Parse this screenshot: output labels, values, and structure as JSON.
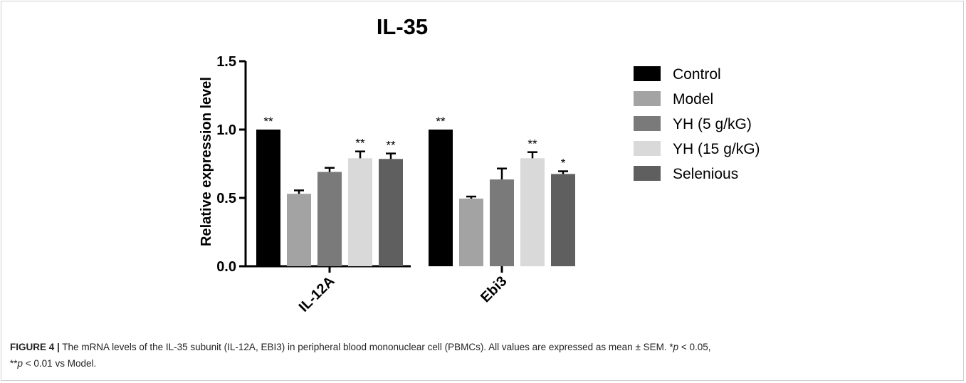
{
  "chart_data": {
    "type": "bar",
    "title": "IL-35",
    "xlabel": "",
    "ylabel": "Relative expression level",
    "ylim": [
      0,
      1.5
    ],
    "yticks": [
      "0.0",
      "0.5",
      "1.0",
      "1.5"
    ],
    "y_tick_values": [
      0,
      0.5,
      1.0,
      1.5
    ],
    "categories": [
      "IL-12A",
      "Ebi3"
    ],
    "legend_position": "right",
    "series": [
      {
        "name": "Control",
        "color": "#000000",
        "values": [
          1.0,
          1.0
        ],
        "errors": [
          0,
          0
        ],
        "annotations": [
          "**",
          "**"
        ]
      },
      {
        "name": "Model",
        "color": "#a3a3a3",
        "values": [
          0.53,
          0.495
        ],
        "errors": [
          0.025,
          0.015
        ],
        "annotations": [
          "",
          ""
        ]
      },
      {
        "name": "YH (5 g/kG)",
        "color": "#7a7a7a",
        "values": [
          0.69,
          0.635
        ],
        "errors": [
          0.03,
          0.08
        ],
        "annotations": [
          "",
          ""
        ]
      },
      {
        "name": "YH (15 g/kG)",
        "color": "#d9d9d9",
        "values": [
          0.79,
          0.79
        ],
        "errors": [
          0.05,
          0.045
        ],
        "annotations": [
          "**",
          "**"
        ]
      },
      {
        "name": "Selenious",
        "color": "#5f5f5f",
        "values": [
          0.785,
          0.675
        ],
        "errors": [
          0.04,
          0.02
        ],
        "annotations": [
          "**",
          "*"
        ]
      }
    ]
  },
  "caption": {
    "figure_label": "FIGURE 4 |",
    "text_main": " The mRNA levels of the IL-35 subunit (IL-12A, EBI3) in peripheral blood mononuclear cell (PBMCs). All values are expressed as mean ± SEM. *",
    "p1": "p",
    "text_mid": " < 0.05,",
    "text_2": "**",
    "p2": "p",
    "text_end": " < 0.01 vs Model."
  }
}
